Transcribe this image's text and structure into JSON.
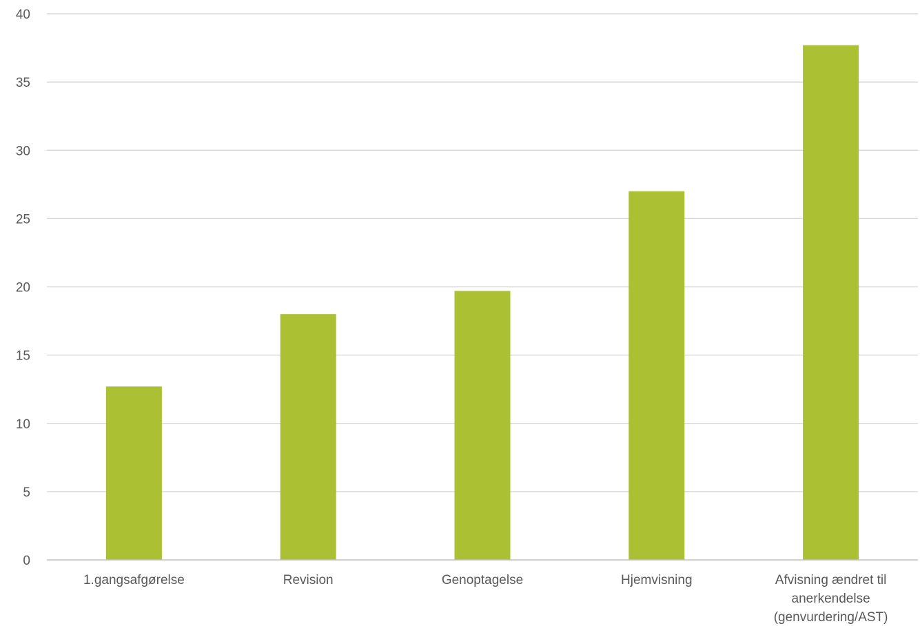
{
  "chart_data": {
    "type": "bar",
    "title": "",
    "xlabel": "",
    "ylabel": "",
    "categories": [
      "1.gangsafgørelse",
      "Revision",
      "Genoptagelse",
      "Hjemvisning",
      "Afvisning ændret til anerkendelse (genvurdering/AST)"
    ],
    "category_label_lines": [
      [
        "1.gangsafgørelse"
      ],
      [
        "Revision"
      ],
      [
        "Genoptagelse"
      ],
      [
        "Hjemvisning"
      ],
      [
        "Afvisning ændret til",
        "anerkendelse",
        "(genvurdering/AST)"
      ]
    ],
    "values": [
      12.7,
      18.0,
      19.7,
      27.0,
      37.7
    ],
    "ylim": [
      0,
      40
    ],
    "yticks": [
      0,
      5,
      10,
      15,
      20,
      25,
      30,
      35,
      40
    ],
    "grid": true,
    "legend": "none",
    "bar_color": "#abc133"
  }
}
